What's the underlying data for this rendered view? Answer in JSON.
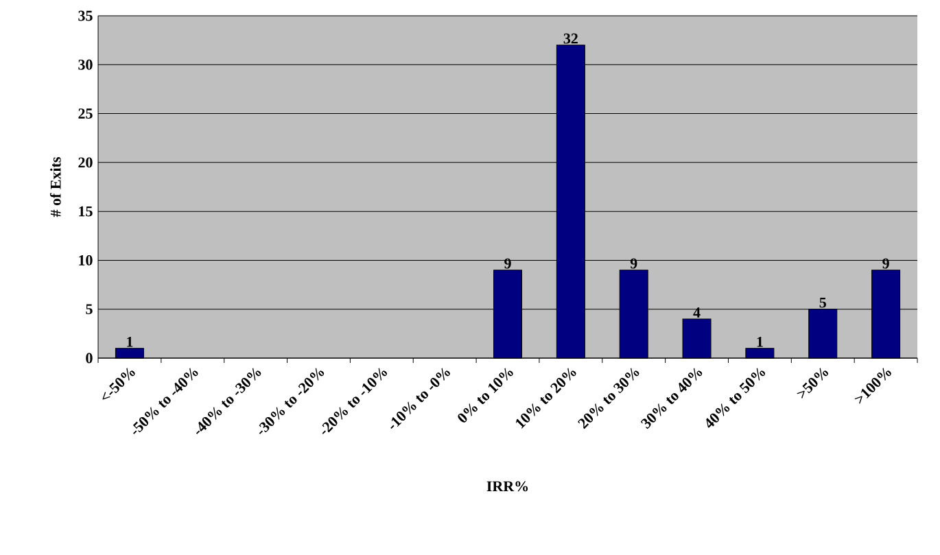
{
  "chart_data": {
    "type": "bar",
    "xlabel": "IRR%",
    "ylabel": "# of Exits",
    "categories": [
      "<-50%",
      "-50% to -40%",
      "-40% to -30%",
      "-30% to -20%",
      "-20% to -10%",
      "-10% to -0%",
      "0% to 10%",
      "10% to 20%",
      "20% to 30%",
      "30% to 40%",
      "40% to 50%",
      ">50%",
      ">100%"
    ],
    "values": [
      1,
      0,
      0,
      0,
      0,
      0,
      9,
      32,
      9,
      4,
      1,
      5,
      9
    ],
    "value_labels": [
      "1",
      null,
      null,
      null,
      null,
      null,
      "9",
      "32",
      "9",
      "4",
      "1",
      "5",
      "9"
    ],
    "color": "#000080",
    "ylim": [
      0,
      35
    ],
    "yticks": [
      0,
      5,
      10,
      15,
      20,
      25,
      30,
      35
    ],
    "grid": "y"
  }
}
